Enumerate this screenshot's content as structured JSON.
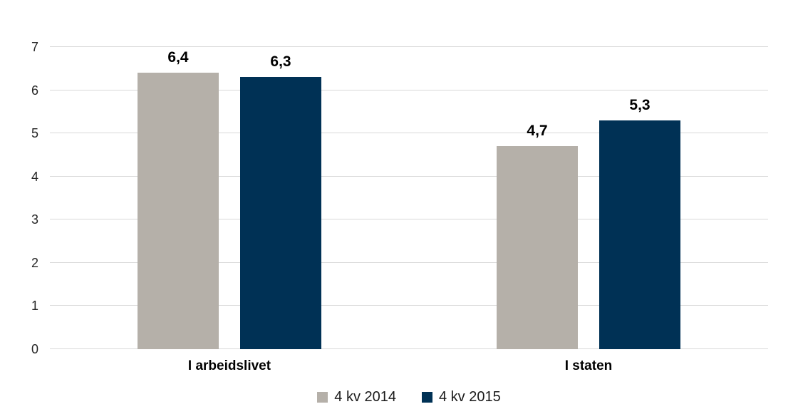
{
  "chart_data": {
    "type": "bar",
    "categories": [
      "I arbeidslivet",
      "I staten"
    ],
    "series": [
      {
        "name": "4 kv 2014",
        "color": "#b5b0a9",
        "values": [
          6.4,
          4.7
        ],
        "value_labels": [
          "6,4",
          "4,7"
        ]
      },
      {
        "name": "4 kv 2015",
        "color": "#003155",
        "values": [
          6.3,
          5.3
        ],
        "value_labels": [
          "6,3",
          "5,3"
        ]
      }
    ],
    "title": "",
    "xlabel": "",
    "ylabel": "",
    "ylim": [
      0,
      7
    ],
    "yticks": [
      0,
      1,
      2,
      3,
      4,
      5,
      6,
      7
    ],
    "grid": true,
    "legend_position": "bottom-center",
    "decimal_separator": ","
  },
  "style": {
    "gridline_color": "#d9d9d9",
    "axis_text_color": "#262626",
    "label_text_color": "#000000",
    "background_color": "#ffffff"
  }
}
